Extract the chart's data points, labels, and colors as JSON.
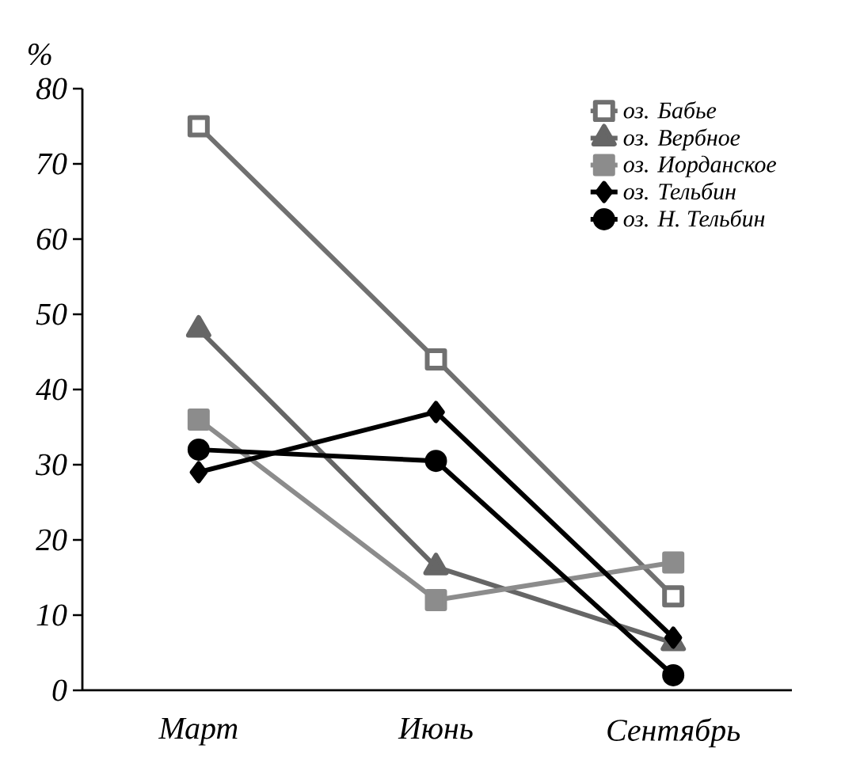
{
  "chart_data": {
    "type": "line",
    "ylabel": "%",
    "categories": [
      "Март",
      "Июнь",
      "Сентябрь"
    ],
    "series": [
      {
        "name": "оз. Бабье",
        "color": "#707070",
        "marker": "square",
        "values": [
          75,
          44,
          12.5
        ]
      },
      {
        "name": "оз. Вербное",
        "color": "#666666",
        "marker": "triangle",
        "values": [
          48,
          16.4,
          6.3
        ]
      },
      {
        "name": "оз. Иорданское",
        "color": "#8c8c8c",
        "marker": "square",
        "values": [
          36,
          12,
          17
        ]
      },
      {
        "name": "оз. Тельбин",
        "color": "#000000",
        "marker": "diamond",
        "values": [
          29,
          37,
          7
        ]
      },
      {
        "name": "оз. Н. Тельбин",
        "color": "#000000",
        "marker": "circle",
        "values": [
          32,
          30.5,
          2
        ]
      }
    ],
    "ylim": [
      0,
      80
    ],
    "yticks": [
      0,
      10,
      20,
      30,
      40,
      50,
      60,
      70,
      80
    ],
    "legend": "top right",
    "grid": false
  }
}
